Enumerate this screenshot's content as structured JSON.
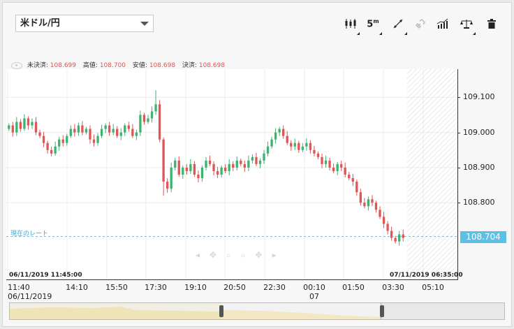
{
  "pair_select": {
    "value": "米ドル/円"
  },
  "toolbar": {
    "interval_label": "5",
    "interval_unit": "m",
    "chart_type_icon": "candlestick-icon",
    "draw_icon": "trendline-icon",
    "link_icon": "link-icon",
    "indicator_icon": "indicator-icon",
    "compare_icon": "scale-icon",
    "delete_icon": "trash-icon"
  },
  "ohlc": {
    "open_label": "未決済:",
    "open_value": "108.699",
    "high_label": "高値:",
    "high_value": "108.700",
    "low_label": "安値:",
    "low_value": "108.698",
    "close_label": "決済:",
    "close_value": "108.698"
  },
  "current_rate": {
    "label": "現在のレート",
    "value": "108.704",
    "color": "#5bc0e6"
  },
  "range": {
    "start": "06/11/2019 11:45:00",
    "end": "07/11/2019 06:35:00"
  },
  "chart_data": {
    "type": "candlestick",
    "ylim": [
      108.58,
      109.18
    ],
    "yticks": [
      "109.100",
      "109.000",
      "108.900",
      "108.800"
    ],
    "ytick_values": [
      109.1,
      109.0,
      108.9,
      108.8
    ],
    "xticks": [
      "11:40",
      "14:10",
      "15:50",
      "17:30",
      "19:10",
      "20:50",
      "22:30",
      "00:10",
      "01:50",
      "03:30",
      "05:10"
    ],
    "xtick_sub": {
      "11:40": "06/11/2019",
      "00:10": "07"
    },
    "close_series": [
      109.02,
      109.0,
      109.03,
      109.01,
      109.04,
      109.02,
      109.03,
      109.0,
      108.99,
      108.97,
      108.95,
      108.94,
      108.96,
      108.98,
      108.97,
      108.99,
      109.01,
      109.0,
      109.02,
      109.0,
      109.01,
      108.98,
      108.97,
      108.99,
      109.01,
      109.02,
      109.0,
      109.01,
      108.99,
      109.0,
      109.02,
      109.01,
      108.99,
      109.0,
      109.05,
      109.03,
      109.04,
      109.06,
      109.08,
      108.98,
      108.86,
      108.84,
      108.9,
      108.92,
      108.88,
      108.9,
      108.89,
      108.91,
      108.88,
      108.87,
      108.9,
      108.92,
      108.91,
      108.89,
      108.88,
      108.9,
      108.89,
      108.91,
      108.9,
      108.92,
      108.91,
      108.9,
      108.92,
      108.93,
      108.91,
      108.92,
      108.94,
      108.96,
      108.98,
      109.0,
      109.01,
      108.99,
      108.97,
      108.96,
      108.97,
      108.95,
      108.96,
      108.97,
      108.95,
      108.94,
      108.93,
      108.91,
      108.92,
      108.9,
      108.89,
      108.91,
      108.9,
      108.88,
      108.87,
      108.86,
      108.83,
      108.8,
      108.79,
      108.81,
      108.8,
      108.78,
      108.76,
      108.74,
      108.72,
      108.7,
      108.69,
      108.71,
      108.7
    ],
    "current": 108.704
  },
  "colors": {
    "up": "#3cb371",
    "down": "#e05555",
    "wick": "#888888"
  }
}
